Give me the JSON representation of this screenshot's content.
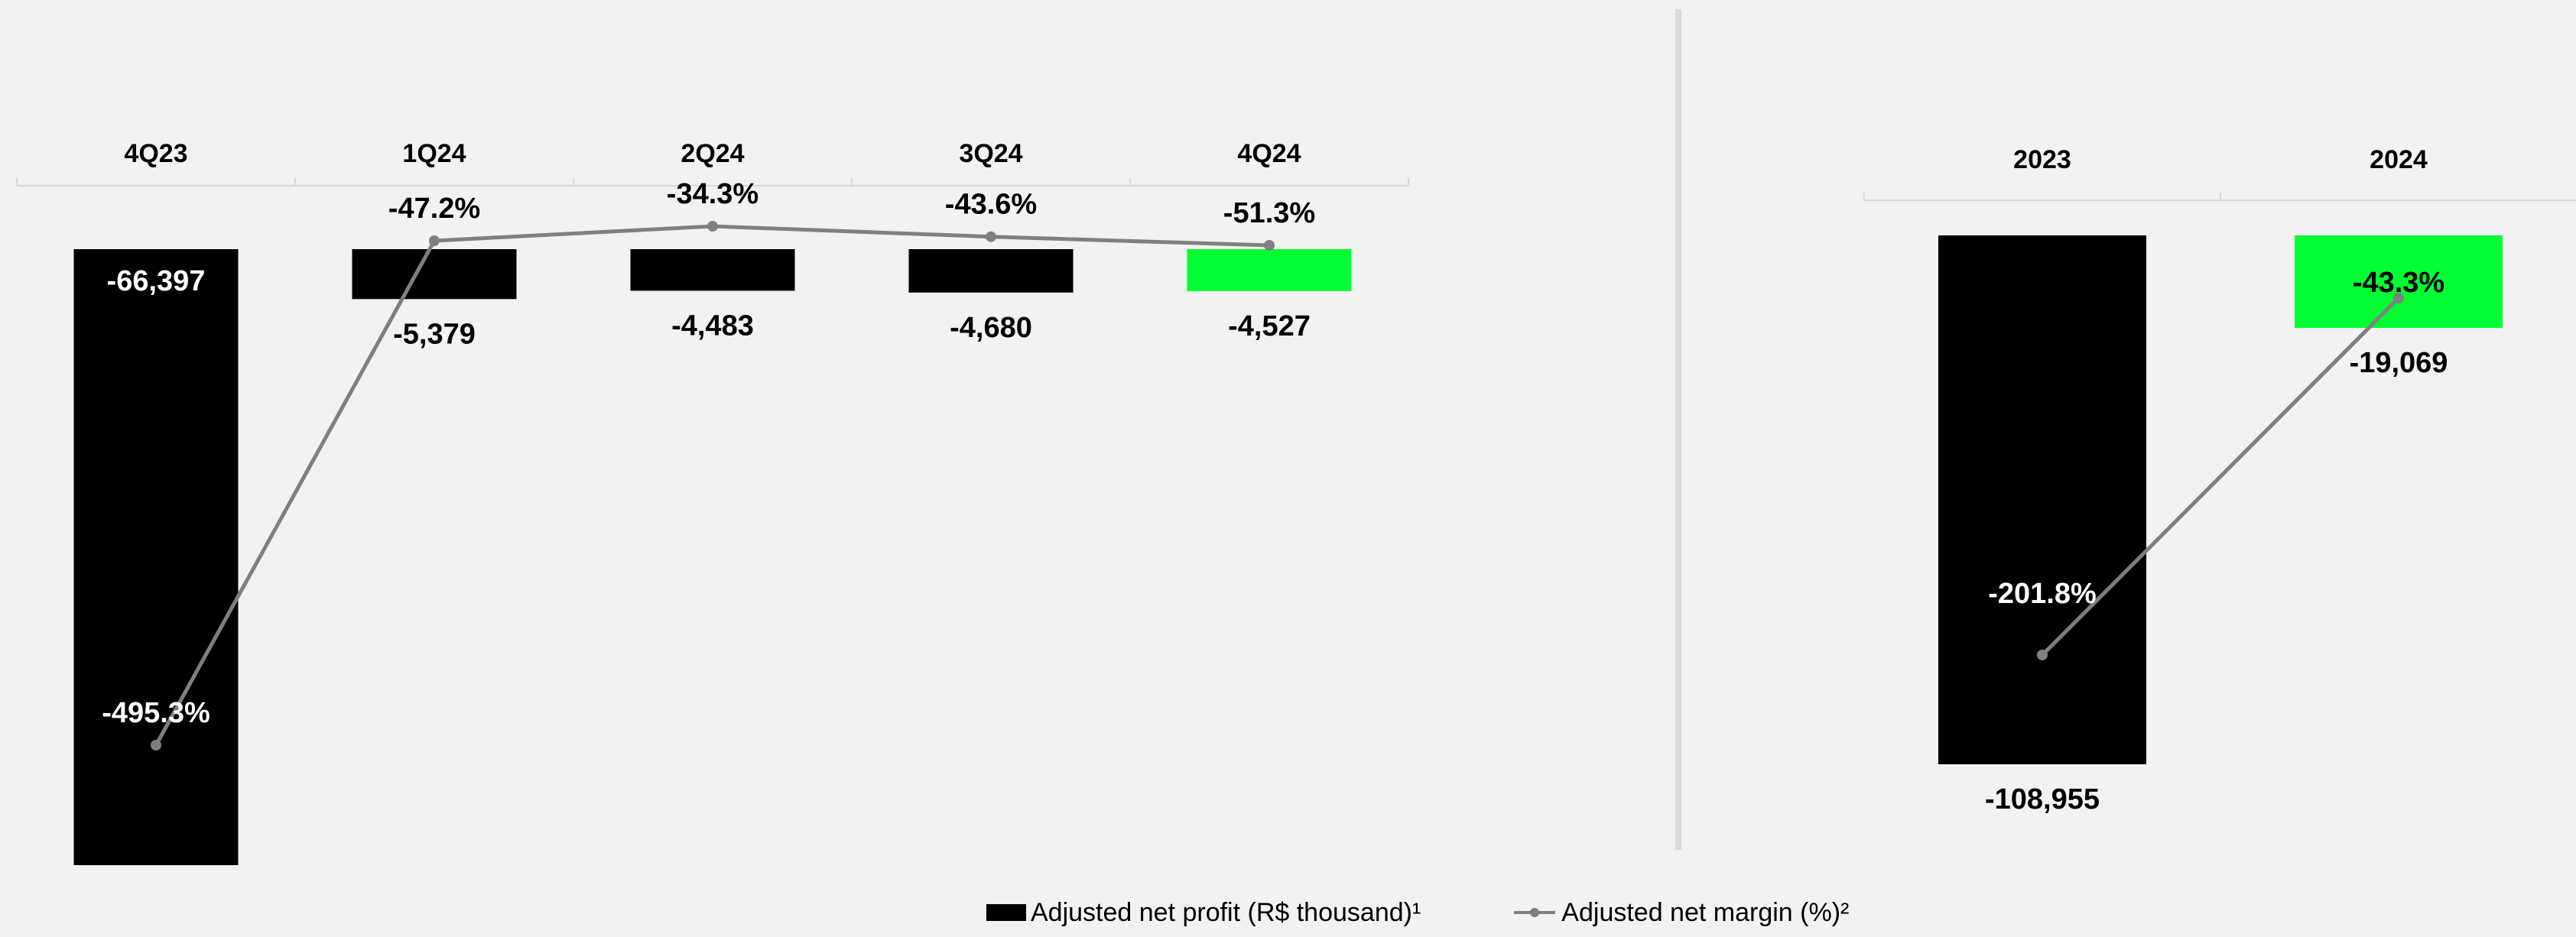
{
  "colors": {
    "bar": "#000000",
    "highlight": "#00ff33",
    "line": "#7f7f7f",
    "background": "#f2f2f2",
    "axis": "#d9d9d9"
  },
  "legend": {
    "bar_label": "Adjusted net profit (R$ thousand)¹",
    "line_label": "Adjusted net margin (%)²"
  },
  "chart_data": [
    {
      "type": "bar",
      "categories": [
        "4Q23",
        "1Q24",
        "2Q24",
        "3Q24",
        "4Q24"
      ],
      "series": [
        {
          "values": [
            -66397,
            -5379,
            -4483,
            -4680,
            -4527
          ],
          "labels": [
            "-66,397",
            "-5,379",
            "-4,483",
            "-4,680",
            "-4,527"
          ],
          "highlight_index": 4
        },
        {
          "type": "line",
          "values": [
            -495.3,
            -47.2,
            -34.3,
            -43.6,
            -51.3
          ],
          "labels": [
            "-495.3%",
            "-47.2%",
            "-34.3%",
            "-43.6%",
            "-51.3%"
          ]
        }
      ],
      "legend_position": "bottom",
      "grid": false
    },
    {
      "type": "bar",
      "categories": [
        "2023",
        "2024"
      ],
      "series": [
        {
          "values": [
            -108955,
            -19069
          ],
          "labels": [
            "-108,955",
            "-19,069"
          ],
          "highlight_index": 1
        },
        {
          "type": "line",
          "values": [
            -201.8,
            -43.3
          ],
          "labels": [
            "-201.8%",
            "-43.3%"
          ]
        }
      ],
      "legend_position": "bottom",
      "grid": false
    }
  ]
}
